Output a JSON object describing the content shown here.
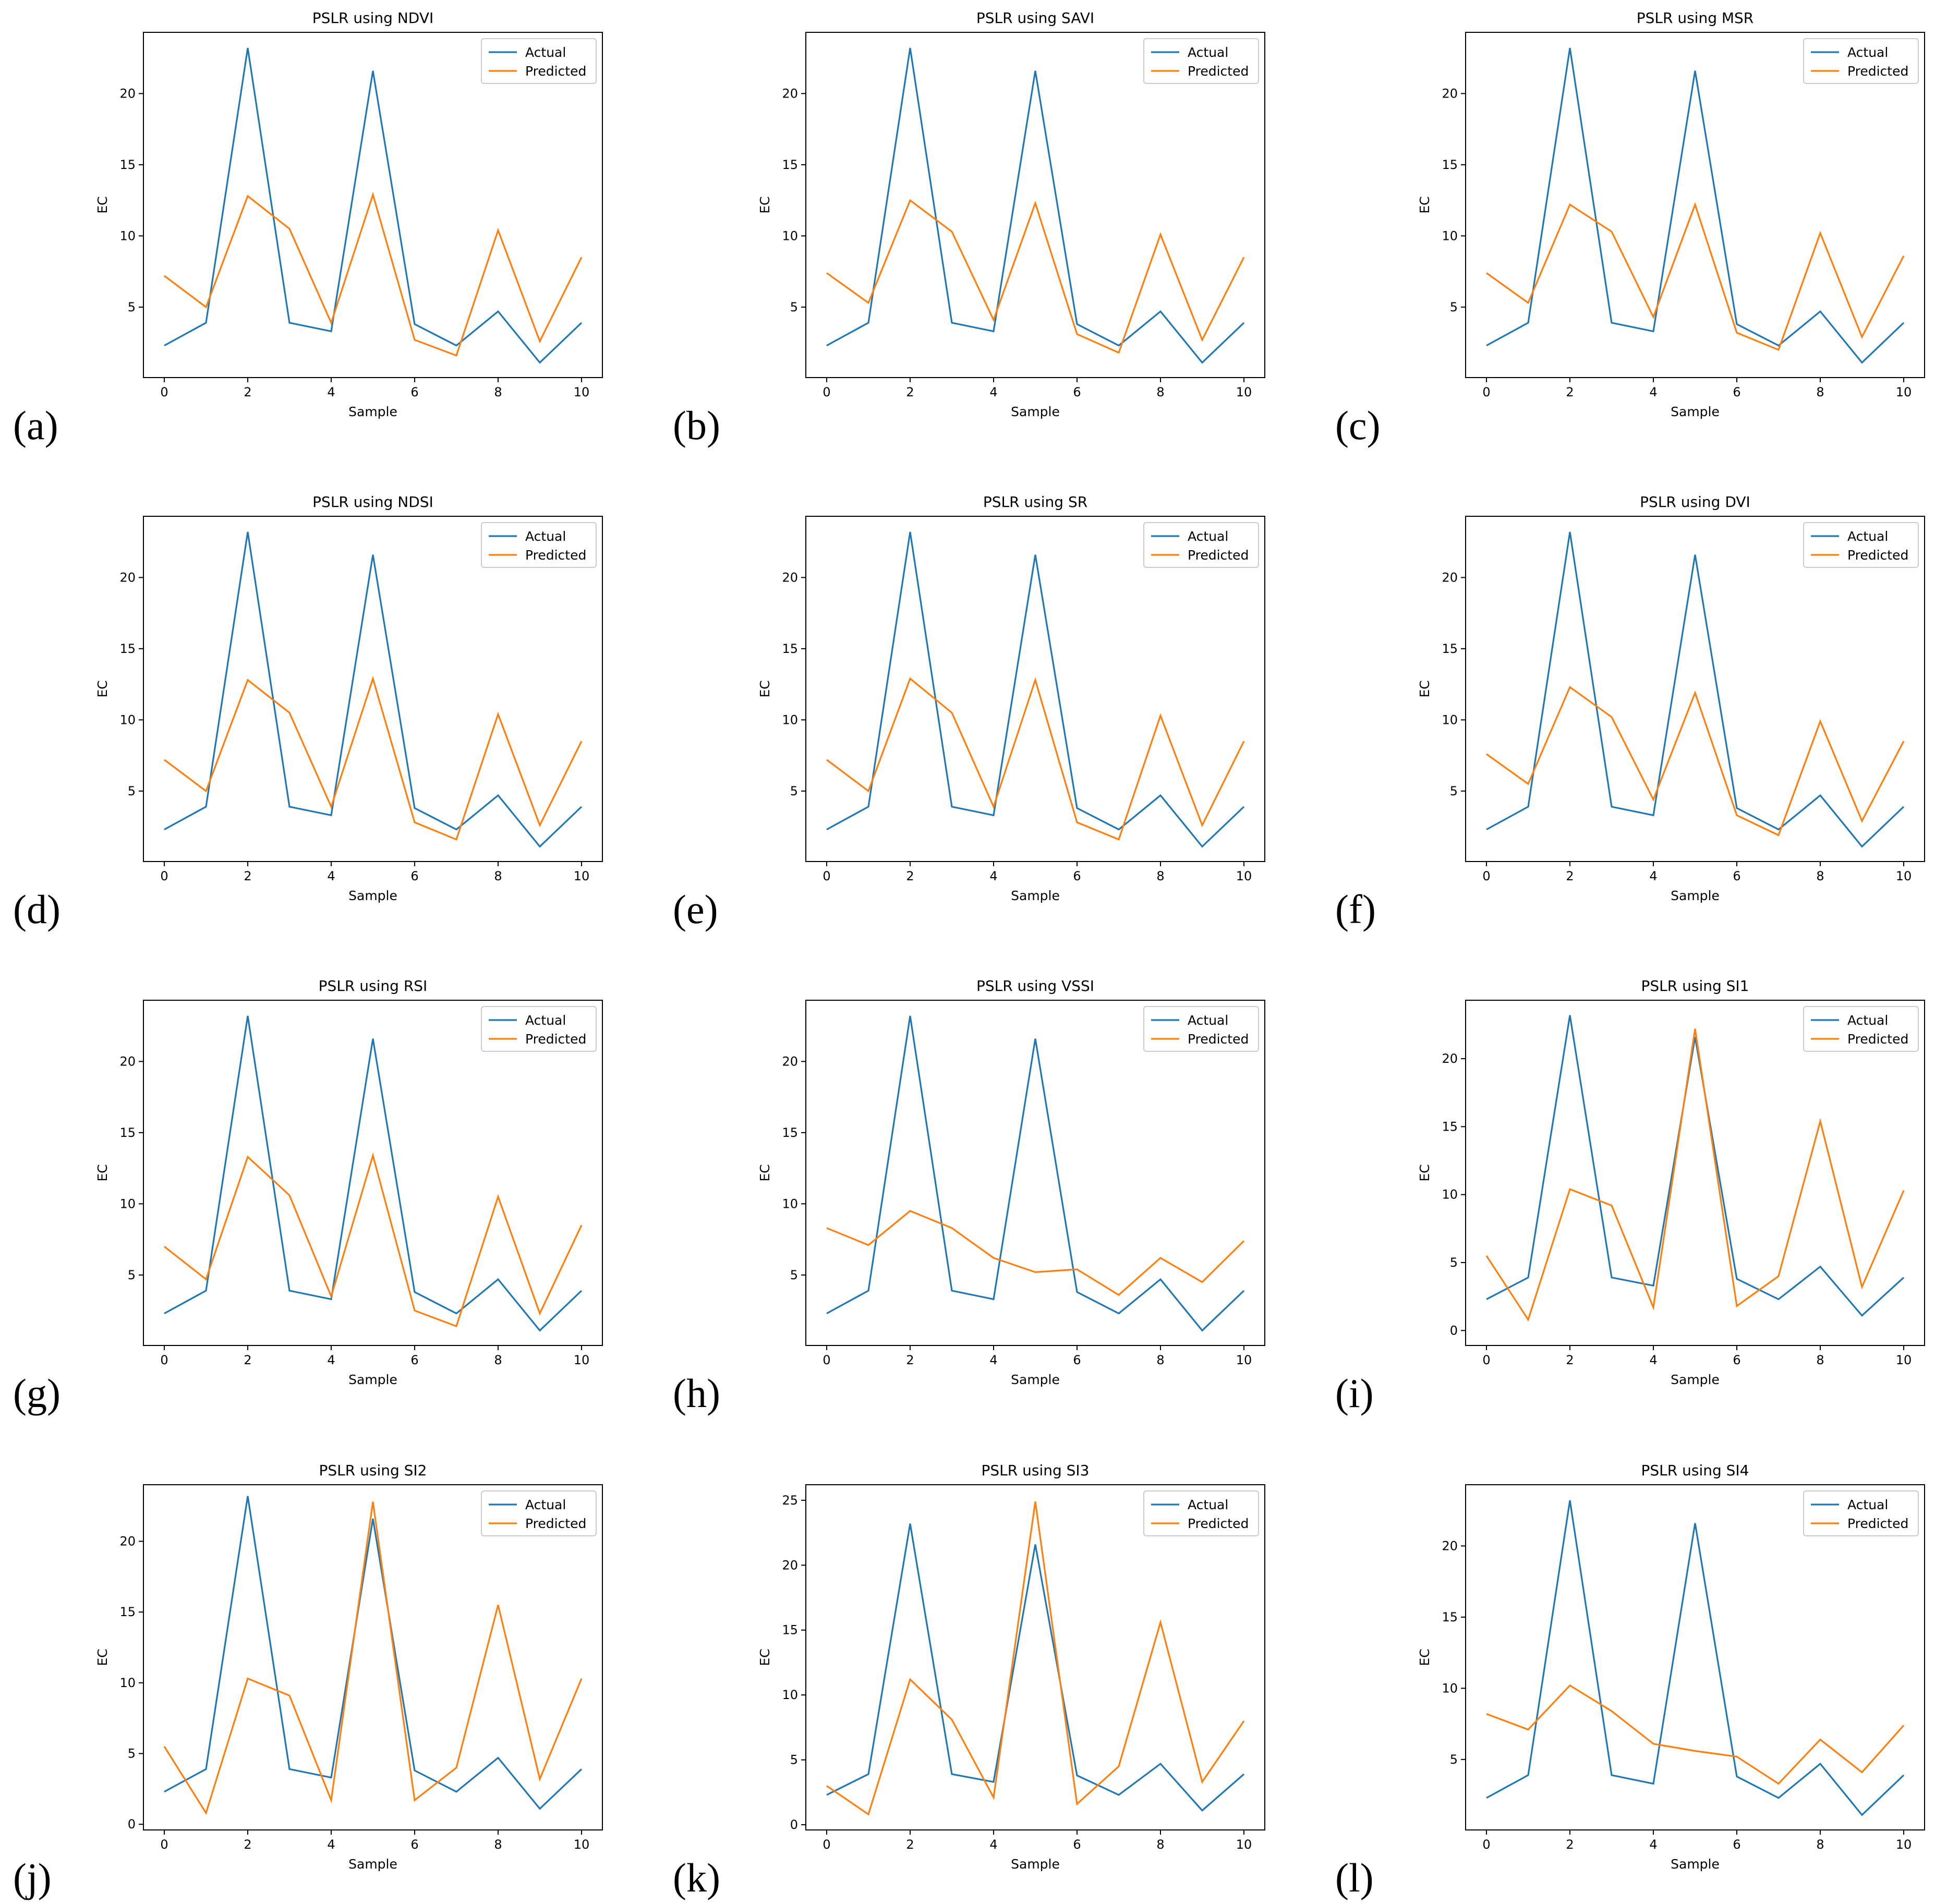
{
  "colors": {
    "actual": "#1f77b4",
    "predicted": "#ff7f0e"
  },
  "chart_data": [
    {
      "type": "line",
      "panel_label": "(a)",
      "title": "PSLR using NDVI",
      "xlabel": "Sample",
      "ylabel": "EC",
      "xlim": [
        -0.5,
        10.5
      ],
      "ylim": [
        0.05,
        24.3
      ],
      "xticks": [
        "0",
        "2",
        "4",
        "6",
        "8",
        "10"
      ],
      "yticks": [
        "5",
        "10",
        "15",
        "20"
      ],
      "legend": "top-right",
      "x": [
        0,
        1,
        2,
        3,
        4,
        5,
        6,
        7,
        8,
        9,
        10
      ],
      "series": [
        {
          "name": "Actual",
          "values": [
            2.3,
            3.9,
            23.2,
            3.9,
            3.3,
            21.6,
            3.8,
            2.3,
            4.7,
            1.1,
            3.9
          ]
        },
        {
          "name": "Predicted",
          "values": [
            7.2,
            5.0,
            12.8,
            10.5,
            3.9,
            12.9,
            2.7,
            1.6,
            10.4,
            2.6,
            8.5
          ]
        }
      ]
    },
    {
      "type": "line",
      "panel_label": "(b)",
      "title": "PSLR using SAVI",
      "xlabel": "Sample",
      "ylabel": "EC",
      "xlim": [
        -0.5,
        10.5
      ],
      "ylim": [
        0.05,
        24.3
      ],
      "xticks": [
        "0",
        "2",
        "4",
        "6",
        "8",
        "10"
      ],
      "yticks": [
        "5",
        "10",
        "15",
        "20"
      ],
      "legend": "top-right",
      "x": [
        0,
        1,
        2,
        3,
        4,
        5,
        6,
        7,
        8,
        9,
        10
      ],
      "series": [
        {
          "name": "Actual",
          "values": [
            2.3,
            3.9,
            23.2,
            3.9,
            3.3,
            21.6,
            3.8,
            2.3,
            4.7,
            1.1,
            3.9
          ]
        },
        {
          "name": "Predicted",
          "values": [
            7.4,
            5.3,
            12.5,
            10.3,
            4.1,
            12.3,
            3.1,
            1.8,
            10.1,
            2.7,
            8.5
          ]
        }
      ]
    },
    {
      "type": "line",
      "panel_label": "(c)",
      "title": "PSLR using MSR",
      "xlabel": "Sample",
      "ylabel": "EC",
      "xlim": [
        -0.5,
        10.5
      ],
      "ylim": [
        0.05,
        24.3
      ],
      "xticks": [
        "0",
        "2",
        "4",
        "6",
        "8",
        "10"
      ],
      "yticks": [
        "5",
        "10",
        "15",
        "20"
      ],
      "legend": "top-right",
      "x": [
        0,
        1,
        2,
        3,
        4,
        5,
        6,
        7,
        8,
        9,
        10
      ],
      "series": [
        {
          "name": "Actual",
          "values": [
            2.3,
            3.9,
            23.2,
            3.9,
            3.3,
            21.6,
            3.8,
            2.3,
            4.7,
            1.1,
            3.9
          ]
        },
        {
          "name": "Predicted",
          "values": [
            7.4,
            5.3,
            12.2,
            10.3,
            4.3,
            12.2,
            3.2,
            2.0,
            10.2,
            2.9,
            8.6
          ]
        }
      ]
    },
    {
      "type": "line",
      "panel_label": "(d)",
      "title": "PSLR using NDSI",
      "xlabel": "Sample",
      "ylabel": "EC",
      "xlim": [
        -0.5,
        10.5
      ],
      "ylim": [
        0.05,
        24.3
      ],
      "xticks": [
        "0",
        "2",
        "4",
        "6",
        "8",
        "10"
      ],
      "yticks": [
        "5",
        "10",
        "15",
        "20"
      ],
      "legend": "top-right",
      "x": [
        0,
        1,
        2,
        3,
        4,
        5,
        6,
        7,
        8,
        9,
        10
      ],
      "series": [
        {
          "name": "Actual",
          "values": [
            2.3,
            3.9,
            23.2,
            3.9,
            3.3,
            21.6,
            3.8,
            2.3,
            4.7,
            1.1,
            3.9
          ]
        },
        {
          "name": "Predicted",
          "values": [
            7.2,
            5.0,
            12.8,
            10.5,
            3.9,
            12.9,
            2.8,
            1.6,
            10.4,
            2.6,
            8.5
          ]
        }
      ]
    },
    {
      "type": "line",
      "panel_label": "(e)",
      "title": "PSLR using SR",
      "xlabel": "Sample",
      "ylabel": "EC",
      "xlim": [
        -0.5,
        10.5
      ],
      "ylim": [
        0.05,
        24.3
      ],
      "xticks": [
        "0",
        "2",
        "4",
        "6",
        "8",
        "10"
      ],
      "yticks": [
        "5",
        "10",
        "15",
        "20"
      ],
      "legend": "top-right",
      "x": [
        0,
        1,
        2,
        3,
        4,
        5,
        6,
        7,
        8,
        9,
        10
      ],
      "series": [
        {
          "name": "Actual",
          "values": [
            2.3,
            3.9,
            23.2,
            3.9,
            3.3,
            21.6,
            3.8,
            2.3,
            4.7,
            1.1,
            3.9
          ]
        },
        {
          "name": "Predicted",
          "values": [
            7.2,
            5.0,
            12.9,
            10.5,
            3.9,
            12.8,
            2.8,
            1.6,
            10.3,
            2.6,
            8.5
          ]
        }
      ]
    },
    {
      "type": "line",
      "panel_label": "(f)",
      "title": "PSLR using DVI",
      "xlabel": "Sample",
      "ylabel": "EC",
      "xlim": [
        -0.5,
        10.5
      ],
      "ylim": [
        0.05,
        24.3
      ],
      "xticks": [
        "0",
        "2",
        "4",
        "6",
        "8",
        "10"
      ],
      "yticks": [
        "5",
        "10",
        "15",
        "20"
      ],
      "legend": "top-right",
      "x": [
        0,
        1,
        2,
        3,
        4,
        5,
        6,
        7,
        8,
        9,
        10
      ],
      "series": [
        {
          "name": "Actual",
          "values": [
            2.3,
            3.9,
            23.2,
            3.9,
            3.3,
            21.6,
            3.8,
            2.3,
            4.7,
            1.1,
            3.9
          ]
        },
        {
          "name": "Predicted",
          "values": [
            7.6,
            5.5,
            12.3,
            10.2,
            4.4,
            11.9,
            3.3,
            1.9,
            9.9,
            2.9,
            8.5
          ]
        }
      ]
    },
    {
      "type": "line",
      "panel_label": "(g)",
      "title": "PSLR using RSI",
      "xlabel": "Sample",
      "ylabel": "EC",
      "xlim": [
        -0.5,
        10.5
      ],
      "ylim": [
        0.05,
        24.3
      ],
      "xticks": [
        "0",
        "2",
        "4",
        "6",
        "8",
        "10"
      ],
      "yticks": [
        "5",
        "10",
        "15",
        "20"
      ],
      "legend": "top-right",
      "x": [
        0,
        1,
        2,
        3,
        4,
        5,
        6,
        7,
        8,
        9,
        10
      ],
      "series": [
        {
          "name": "Actual",
          "values": [
            2.3,
            3.9,
            23.2,
            3.9,
            3.3,
            21.6,
            3.8,
            2.3,
            4.7,
            1.1,
            3.9
          ]
        },
        {
          "name": "Predicted",
          "values": [
            7.0,
            4.7,
            13.3,
            10.6,
            3.5,
            13.4,
            2.5,
            1.4,
            10.5,
            2.3,
            8.5
          ]
        }
      ]
    },
    {
      "type": "line",
      "panel_label": "(h)",
      "title": "PSLR using VSSI",
      "xlabel": "Sample",
      "ylabel": "EC",
      "xlim": [
        -0.5,
        10.5
      ],
      "ylim": [
        0.05,
        24.3
      ],
      "xticks": [
        "0",
        "2",
        "4",
        "6",
        "8",
        "10"
      ],
      "yticks": [
        "5",
        "10",
        "15",
        "20"
      ],
      "legend": "top-right",
      "x": [
        0,
        1,
        2,
        3,
        4,
        5,
        6,
        7,
        8,
        9,
        10
      ],
      "series": [
        {
          "name": "Actual",
          "values": [
            2.3,
            3.9,
            23.2,
            3.9,
            3.3,
            21.6,
            3.8,
            2.3,
            4.7,
            1.1,
            3.9
          ]
        },
        {
          "name": "Predicted",
          "values": [
            8.3,
            7.1,
            9.5,
            8.3,
            6.2,
            5.2,
            5.4,
            3.6,
            6.2,
            4.5,
            7.4
          ]
        }
      ]
    },
    {
      "type": "line",
      "panel_label": "(i)",
      "title": "PSLR using SI1",
      "xlabel": "Sample",
      "ylabel": "EC",
      "xlim": [
        -0.5,
        10.5
      ],
      "ylim": [
        -1.1,
        24.3
      ],
      "xticks": [
        "0",
        "2",
        "4",
        "6",
        "8",
        "10"
      ],
      "yticks": [
        "0",
        "5",
        "10",
        "15",
        "20"
      ],
      "legend": "top-right",
      "x": [
        0,
        1,
        2,
        3,
        4,
        5,
        6,
        7,
        8,
        9,
        10
      ],
      "series": [
        {
          "name": "Actual",
          "values": [
            2.3,
            3.9,
            23.2,
            3.9,
            3.3,
            21.6,
            3.8,
            2.3,
            4.7,
            1.1,
            3.9
          ]
        },
        {
          "name": "Predicted",
          "values": [
            5.5,
            0.8,
            10.4,
            9.2,
            1.7,
            22.2,
            1.8,
            4.0,
            15.4,
            3.2,
            10.3
          ]
        }
      ]
    },
    {
      "type": "line",
      "panel_label": "(j)",
      "title": "PSLR using SI2",
      "xlabel": "Sample",
      "ylabel": "EC",
      "xlim": [
        -0.5,
        10.5
      ],
      "ylim": [
        -0.4,
        24.0
      ],
      "xticks": [
        "0",
        "2",
        "4",
        "6",
        "8",
        "10"
      ],
      "yticks": [
        "0",
        "5",
        "10",
        "15",
        "20"
      ],
      "legend": "top-right",
      "x": [
        0,
        1,
        2,
        3,
        4,
        5,
        6,
        7,
        8,
        9,
        10
      ],
      "series": [
        {
          "name": "Actual",
          "values": [
            2.3,
            3.9,
            23.2,
            3.9,
            3.3,
            21.6,
            3.8,
            2.3,
            4.7,
            1.1,
            3.9
          ]
        },
        {
          "name": "Predicted",
          "values": [
            5.5,
            0.8,
            10.3,
            9.1,
            1.7,
            22.8,
            1.7,
            4.0,
            15.5,
            3.2,
            10.3
          ]
        }
      ]
    },
    {
      "type": "line",
      "panel_label": "(k)",
      "title": "PSLR using SI3",
      "xlabel": "Sample",
      "ylabel": "EC",
      "xlim": [
        -0.5,
        10.5
      ],
      "ylim": [
        -0.4,
        26.2
      ],
      "xticks": [
        "0",
        "2",
        "4",
        "6",
        "8",
        "10"
      ],
      "yticks": [
        "0",
        "5",
        "10",
        "15",
        "20",
        "25"
      ],
      "legend": "top-right",
      "x": [
        0,
        1,
        2,
        3,
        4,
        5,
        6,
        7,
        8,
        9,
        10
      ],
      "series": [
        {
          "name": "Actual",
          "values": [
            2.3,
            3.9,
            23.2,
            3.9,
            3.3,
            21.6,
            3.8,
            2.3,
            4.7,
            1.1,
            3.9
          ]
        },
        {
          "name": "Predicted",
          "values": [
            3.0,
            0.8,
            11.2,
            8.1,
            2.1,
            24.9,
            1.6,
            4.5,
            15.6,
            3.3,
            8.0
          ]
        }
      ]
    },
    {
      "type": "line",
      "panel_label": "(l)",
      "title": "PSLR using SI4",
      "xlabel": "Sample",
      "ylabel": "EC",
      "xlim": [
        -0.5,
        10.5
      ],
      "ylim": [
        0.05,
        24.3
      ],
      "xticks": [
        "0",
        "2",
        "4",
        "6",
        "8",
        "10"
      ],
      "yticks": [
        "5",
        "10",
        "15",
        "20"
      ],
      "legend": "top-right",
      "x": [
        0,
        1,
        2,
        3,
        4,
        5,
        6,
        7,
        8,
        9,
        10
      ],
      "series": [
        {
          "name": "Actual",
          "values": [
            2.3,
            3.9,
            23.2,
            3.9,
            3.3,
            21.6,
            3.8,
            2.3,
            4.7,
            1.1,
            3.9
          ]
        },
        {
          "name": "Predicted",
          "values": [
            8.2,
            7.1,
            10.2,
            8.4,
            6.1,
            5.6,
            5.2,
            3.3,
            6.4,
            4.1,
            7.4
          ]
        }
      ]
    }
  ]
}
